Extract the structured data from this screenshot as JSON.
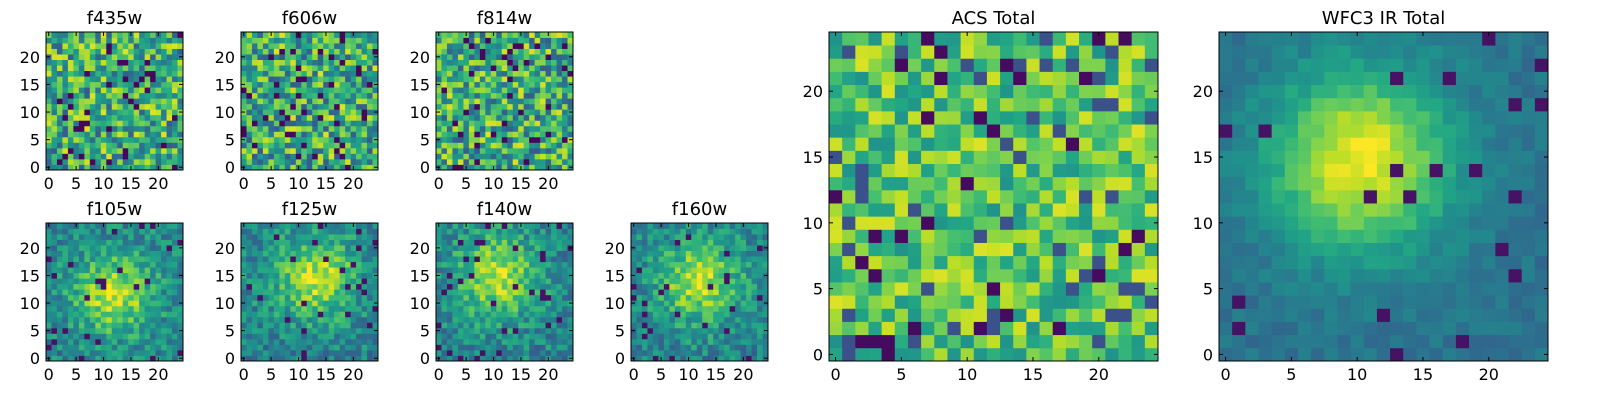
{
  "figure": {
    "description_free": true
  },
  "chart_data": [
    {
      "type": "heatmap",
      "title": "f435w",
      "xlabel": "",
      "ylabel": "",
      "size": 25,
      "xticks": [
        0,
        5,
        10,
        15,
        20
      ],
      "yticks": [
        0,
        5,
        10,
        15,
        20
      ],
      "colormap": "viridis",
      "pattern": "noise",
      "seed": 11
    },
    {
      "type": "heatmap",
      "title": "f606w",
      "xlabel": "",
      "ylabel": "",
      "size": 25,
      "xticks": [
        0,
        5,
        10,
        15,
        20
      ],
      "yticks": [
        0,
        5,
        10,
        15,
        20
      ],
      "colormap": "viridis",
      "pattern": "noise",
      "seed": 23
    },
    {
      "type": "heatmap",
      "title": "f814w",
      "xlabel": "",
      "ylabel": "",
      "size": 25,
      "xticks": [
        0,
        5,
        10,
        15,
        20
      ],
      "yticks": [
        0,
        5,
        10,
        15,
        20
      ],
      "colormap": "viridis",
      "pattern": "noise",
      "seed": 37
    },
    {
      "type": "heatmap",
      "title": "f105w",
      "xlabel": "",
      "ylabel": "",
      "size": 25,
      "xticks": [
        0,
        5,
        10,
        15,
        20
      ],
      "yticks": [
        0,
        5,
        10,
        15,
        20
      ],
      "colormap": "viridis",
      "pattern": "blob",
      "seed": 41
    },
    {
      "type": "heatmap",
      "title": "f125w",
      "xlabel": "",
      "ylabel": "",
      "size": 25,
      "xticks": [
        0,
        5,
        10,
        15,
        20
      ],
      "yticks": [
        0,
        5,
        10,
        15,
        20
      ],
      "colormap": "viridis",
      "pattern": "blob",
      "seed": 53
    },
    {
      "type": "heatmap",
      "title": "f140w",
      "xlabel": "",
      "ylabel": "",
      "size": 25,
      "xticks": [
        0,
        5,
        10,
        15,
        20
      ],
      "yticks": [
        0,
        5,
        10,
        15,
        20
      ],
      "colormap": "viridis",
      "pattern": "blob",
      "seed": 67
    },
    {
      "type": "heatmap",
      "title": "f160w",
      "xlabel": "",
      "ylabel": "",
      "size": 25,
      "xticks": [
        0,
        5,
        10,
        15,
        20
      ],
      "yticks": [
        0,
        5,
        10,
        15,
        20
      ],
      "colormap": "viridis",
      "pattern": "blob",
      "seed": 79
    },
    {
      "type": "heatmap",
      "title": "ACS Total",
      "xlabel": "",
      "ylabel": "",
      "size": 25,
      "xticks": [
        0,
        5,
        10,
        15,
        20
      ],
      "yticks": [
        0,
        5,
        10,
        15,
        20
      ],
      "colormap": "viridis",
      "pattern": "noise-bright",
      "seed": 97
    },
    {
      "type": "heatmap",
      "title": "WFC3 IR Total",
      "xlabel": "",
      "ylabel": "",
      "size": 25,
      "xticks": [
        0,
        5,
        10,
        15,
        20
      ],
      "yticks": [
        0,
        5,
        10,
        15,
        20
      ],
      "colormap": "viridis",
      "pattern": "smooth-blob",
      "seed": 101
    }
  ]
}
